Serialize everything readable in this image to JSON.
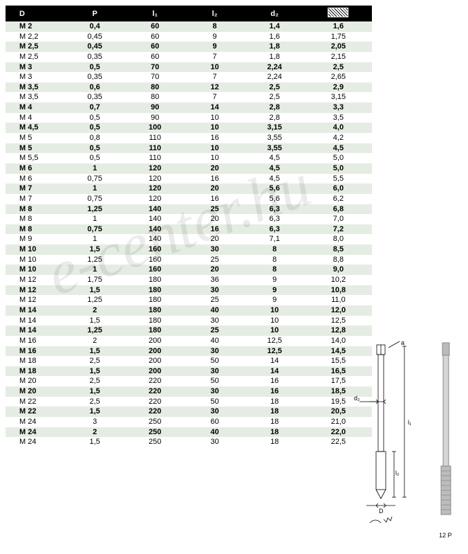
{
  "columns": [
    "D",
    "P",
    "l₁",
    "l₂",
    "d₂",
    "hatch"
  ],
  "hatch_header_is_icon": true,
  "row_colors": {
    "odd": "#e5ece3",
    "even": "#ffffff"
  },
  "header_bg": "#000000",
  "header_fg": "#ffffff",
  "font_size": 11,
  "watermark": "e-center.hu",
  "rows": [
    [
      "M 2",
      "0,4",
      "60",
      "8",
      "1,4",
      "1,6"
    ],
    [
      "M 2,2",
      "0,45",
      "60",
      "9",
      "1,6",
      "1,75"
    ],
    [
      "M 2,5",
      "0,45",
      "60",
      "9",
      "1,8",
      "2,05"
    ],
    [
      "M 2,5",
      "0,35",
      "60",
      "7",
      "1,8",
      "2,15"
    ],
    [
      "M 3",
      "0,5",
      "70",
      "10",
      "2,24",
      "2,5"
    ],
    [
      "M 3",
      "0,35",
      "70",
      "7",
      "2,24",
      "2,65"
    ],
    [
      "M 3,5",
      "0,6",
      "80",
      "12",
      "2,5",
      "2,9"
    ],
    [
      "M 3,5",
      "0,35",
      "80",
      "7",
      "2,5",
      "3,15"
    ],
    [
      "M 4",
      "0,7",
      "90",
      "14",
      "2,8",
      "3,3"
    ],
    [
      "M 4",
      "0,5",
      "90",
      "10",
      "2,8",
      "3,5"
    ],
    [
      "M 4,5",
      "0,5",
      "100",
      "10",
      "3,15",
      "4,0"
    ],
    [
      "M 5",
      "0,8",
      "110",
      "16",
      "3,55",
      "4,2"
    ],
    [
      "M 5",
      "0,5",
      "110",
      "10",
      "3,55",
      "4,5"
    ],
    [
      "M 5,5",
      "0,5",
      "110",
      "10",
      "4,5",
      "5,0"
    ],
    [
      "M 6",
      "1",
      "120",
      "20",
      "4,5",
      "5,0"
    ],
    [
      "M 6",
      "0,75",
      "120",
      "16",
      "4,5",
      "5,5"
    ],
    [
      "M 7",
      "1",
      "120",
      "20",
      "5,6",
      "6,0"
    ],
    [
      "M 7",
      "0,75",
      "120",
      "16",
      "5,6",
      "6,2"
    ],
    [
      "M 8",
      "1,25",
      "140",
      "25",
      "6,3",
      "6,8"
    ],
    [
      "M 8",
      "1",
      "140",
      "20",
      "6,3",
      "7,0"
    ],
    [
      "M 8",
      "0,75",
      "140",
      "16",
      "6,3",
      "7,2"
    ],
    [
      "M 9",
      "1",
      "140",
      "20",
      "7,1",
      "8,0"
    ],
    [
      "M 10",
      "1,5",
      "160",
      "30",
      "8",
      "8,5"
    ],
    [
      "M 10",
      "1,25",
      "160",
      "25",
      "8",
      "8,8"
    ],
    [
      "M 10",
      "1",
      "160",
      "20",
      "8",
      "9,0"
    ],
    [
      "M 12",
      "1,75",
      "180",
      "36",
      "9",
      "10,2"
    ],
    [
      "M 12",
      "1,5",
      "180",
      "30",
      "9",
      "10,8"
    ],
    [
      "M 12",
      "1,25",
      "180",
      "25",
      "9",
      "11,0"
    ],
    [
      "M 14",
      "2",
      "180",
      "40",
      "10",
      "12,0"
    ],
    [
      "M 14",
      "1,5",
      "180",
      "30",
      "10",
      "12,5"
    ],
    [
      "M 14",
      "1,25",
      "180",
      "25",
      "10",
      "12,8"
    ],
    [
      "M 16",
      "2",
      "200",
      "40",
      "12,5",
      "14,0"
    ],
    [
      "M 16",
      "1,5",
      "200",
      "30",
      "12,5",
      "14,5"
    ],
    [
      "M 18",
      "2,5",
      "200",
      "50",
      "14",
      "15,5"
    ],
    [
      "M 18",
      "1,5",
      "200",
      "30",
      "14",
      "16,5"
    ],
    [
      "M 20",
      "2,5",
      "220",
      "50",
      "16",
      "17,5"
    ],
    [
      "M 20",
      "1,5",
      "220",
      "30",
      "16",
      "18,5"
    ],
    [
      "M 22",
      "2,5",
      "220",
      "50",
      "18",
      "19,5"
    ],
    [
      "M 22",
      "1,5",
      "220",
      "30",
      "18",
      "20,5"
    ],
    [
      "M 24",
      "3",
      "250",
      "60",
      "18",
      "21,0"
    ],
    [
      "M 24",
      "2",
      "250",
      "40",
      "18",
      "22,0"
    ],
    [
      "M 24",
      "1,5",
      "250",
      "30",
      "18",
      "22,5"
    ]
  ],
  "bold_rows_stripe": "odd",
  "diagram": {
    "labels": {
      "a": "a",
      "d2": "d₂",
      "D": "D",
      "l1": "l₁",
      "l2": "l₂",
      "pitch": "12 P"
    }
  }
}
